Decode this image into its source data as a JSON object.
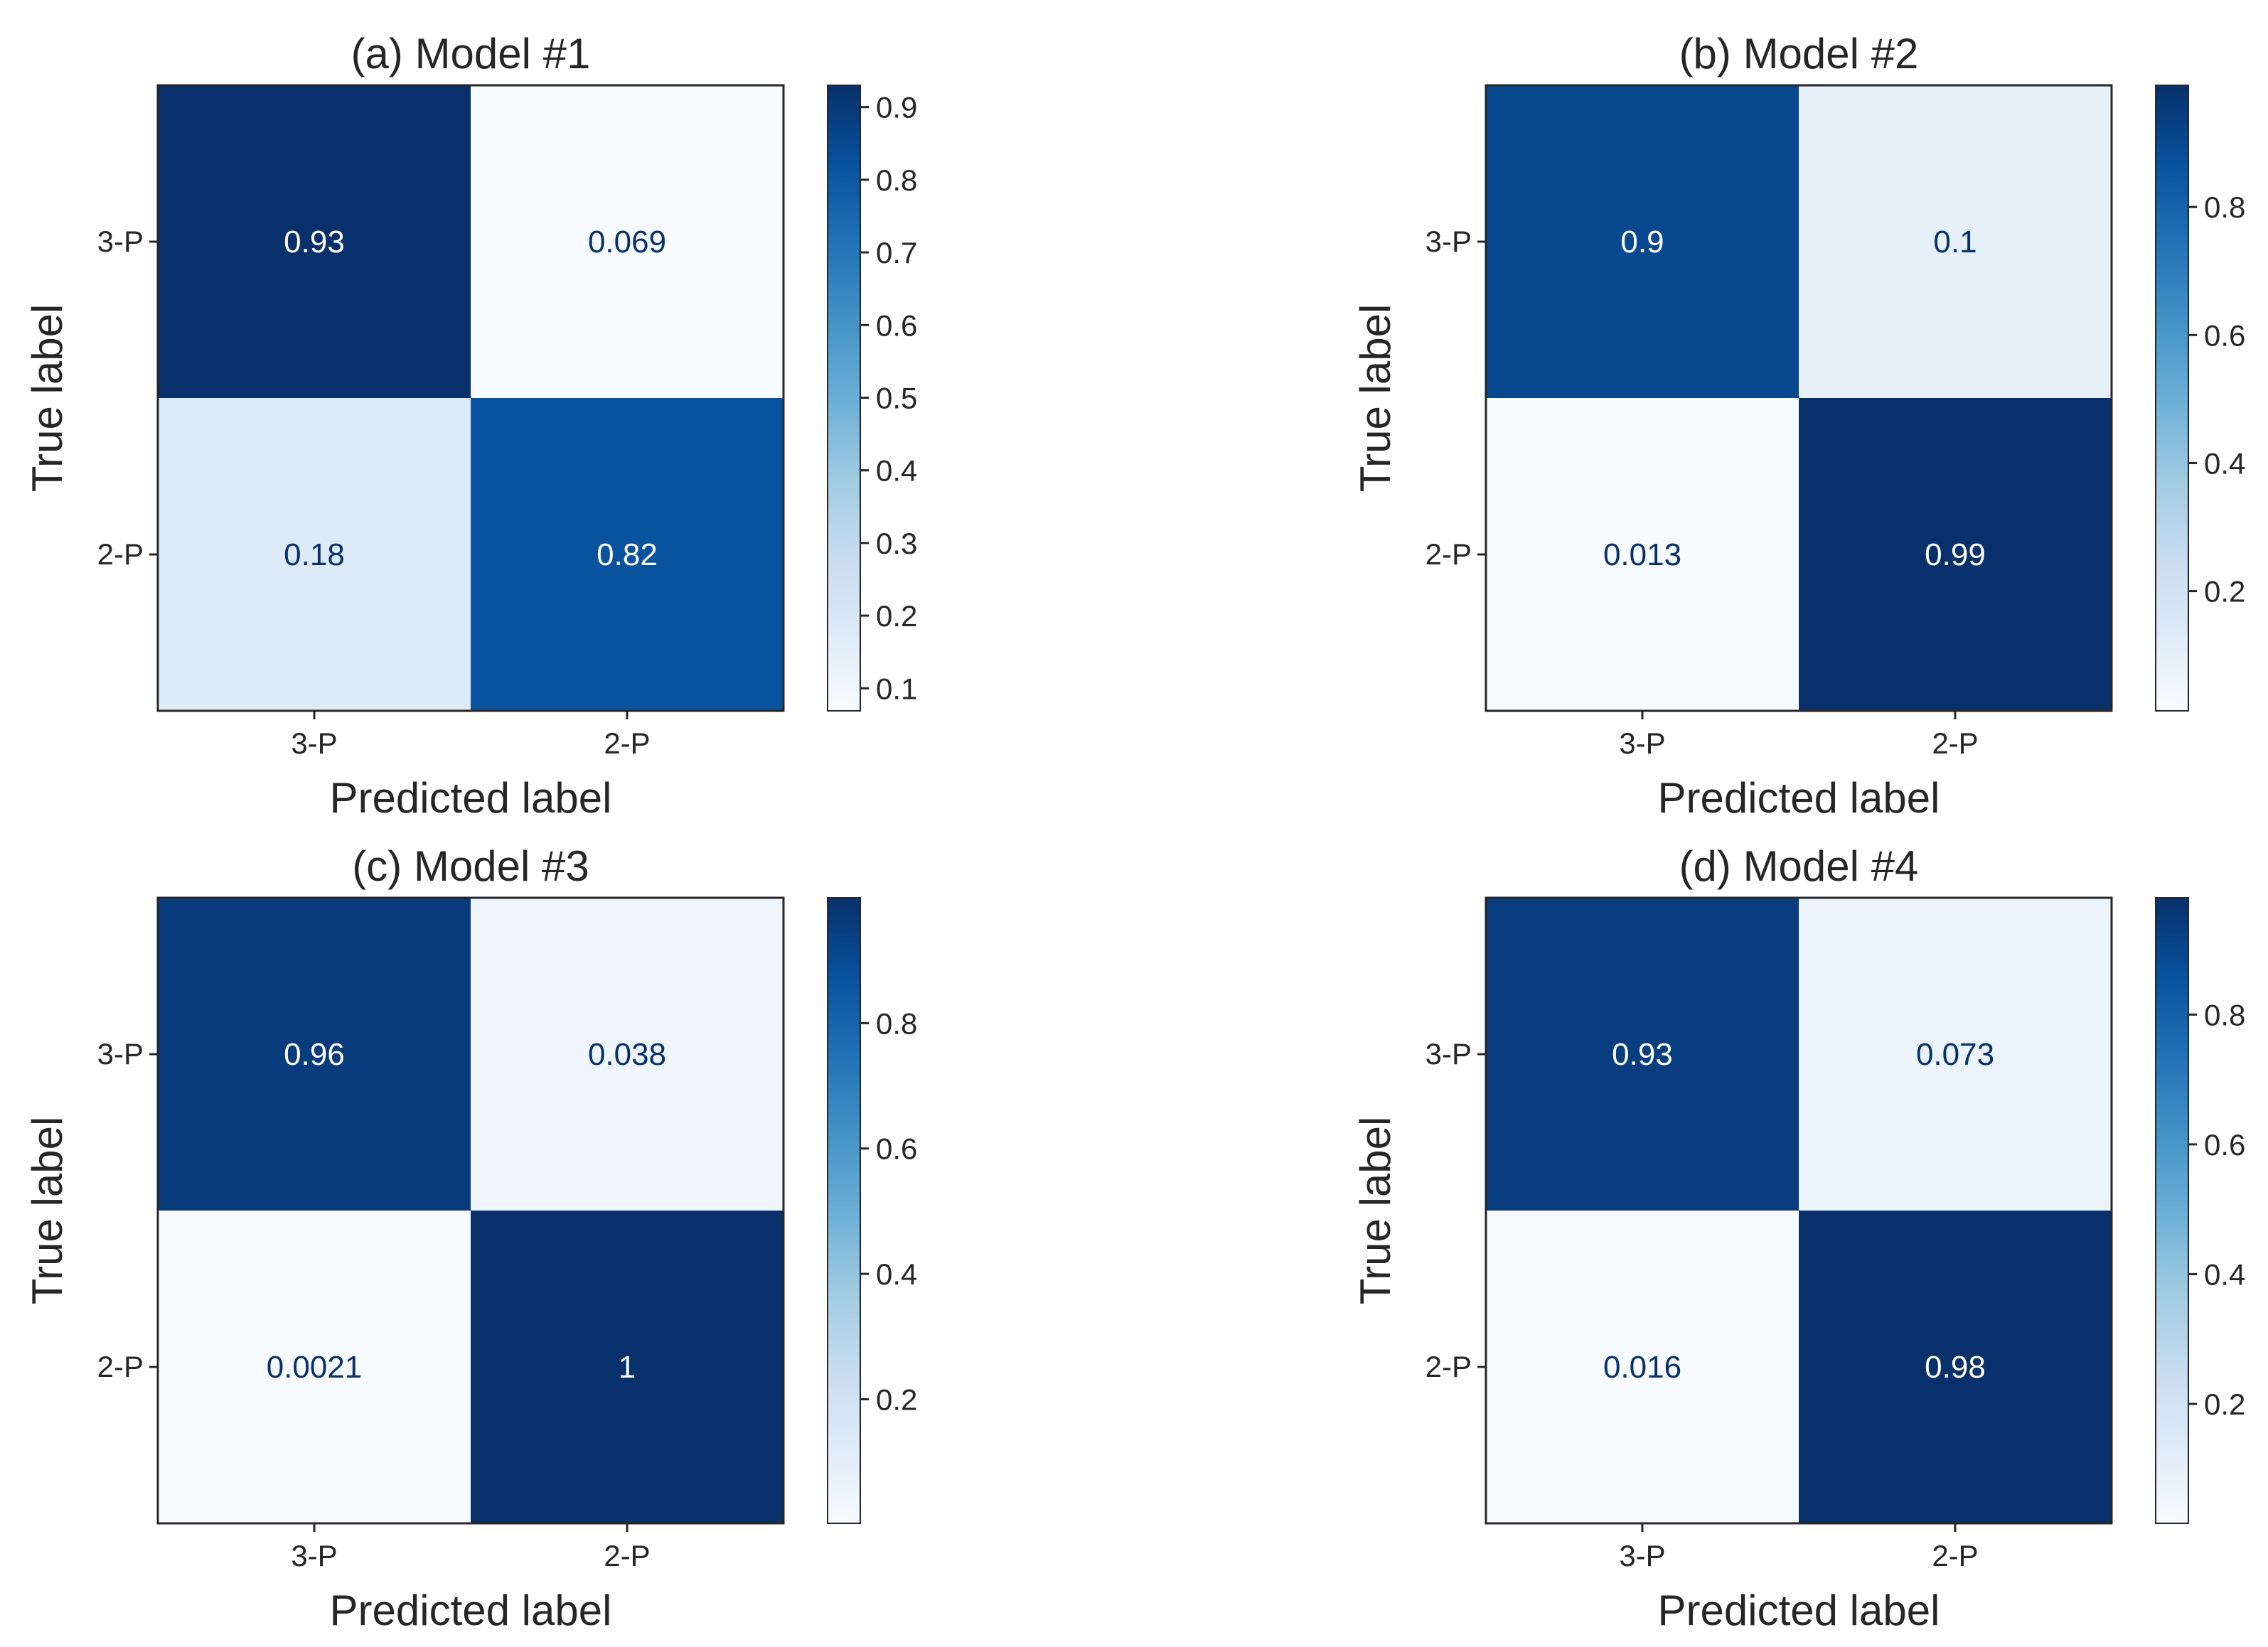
{
  "chart_data": [
    {
      "type": "heatmap",
      "title": "(a) Model #1",
      "xlabel": "Predicted label",
      "ylabel": "True label",
      "x_tick_labels": [
        "3-P",
        "2-P"
      ],
      "y_tick_labels": [
        "3-P",
        "2-P"
      ],
      "matrix": [
        [
          0.93,
          0.069
        ],
        [
          0.18,
          0.82
        ]
      ],
      "cell_labels": [
        [
          "0.93",
          "0.069"
        ],
        [
          "0.18",
          "0.82"
        ]
      ],
      "colorbar": {
        "min": 0.069,
        "max": 0.93,
        "ticks": [
          0.1,
          0.2,
          0.3,
          0.4,
          0.5,
          0.6,
          0.7,
          0.8,
          0.9
        ],
        "tick_labels": [
          "0.1",
          "0.2",
          "0.3",
          "0.4",
          "0.5",
          "0.6",
          "0.7",
          "0.8",
          "0.9"
        ]
      },
      "colormap": "Blues"
    },
    {
      "type": "heatmap",
      "title": "(b) Model #2",
      "xlabel": "Predicted label",
      "ylabel": "True label",
      "x_tick_labels": [
        "3-P",
        "2-P"
      ],
      "y_tick_labels": [
        "3-P",
        "2-P"
      ],
      "matrix": [
        [
          0.9,
          0.1
        ],
        [
          0.013,
          0.99
        ]
      ],
      "cell_labels": [
        [
          "0.9",
          "0.1"
        ],
        [
          "0.013",
          "0.99"
        ]
      ],
      "colorbar": {
        "min": 0.013,
        "max": 0.99,
        "ticks": [
          0.2,
          0.4,
          0.6,
          0.8
        ],
        "tick_labels": [
          "0.2",
          "0.4",
          "0.6",
          "0.8"
        ]
      },
      "colormap": "Blues"
    },
    {
      "type": "heatmap",
      "title": "(c) Model #3",
      "xlabel": "Predicted label",
      "ylabel": "True label",
      "x_tick_labels": [
        "3-P",
        "2-P"
      ],
      "y_tick_labels": [
        "3-P",
        "2-P"
      ],
      "matrix": [
        [
          0.96,
          0.038
        ],
        [
          0.0021,
          1.0
        ]
      ],
      "cell_labels": [
        [
          "0.96",
          "0.038"
        ],
        [
          "0.0021",
          "1"
        ]
      ],
      "colorbar": {
        "min": 0.0021,
        "max": 1.0,
        "ticks": [
          0.2,
          0.4,
          0.6,
          0.8
        ],
        "tick_labels": [
          "0.2",
          "0.4",
          "0.6",
          "0.8"
        ]
      },
      "colormap": "Blues"
    },
    {
      "type": "heatmap",
      "title": "(d) Model #4",
      "xlabel": "Predicted label",
      "ylabel": "True label",
      "x_tick_labels": [
        "3-P",
        "2-P"
      ],
      "y_tick_labels": [
        "3-P",
        "2-P"
      ],
      "matrix": [
        [
          0.93,
          0.073
        ],
        [
          0.016,
          0.98
        ]
      ],
      "cell_labels": [
        [
          "0.93",
          "0.073"
        ],
        [
          "0.016",
          "0.98"
        ]
      ],
      "colorbar": {
        "min": 0.016,
        "max": 0.98,
        "ticks": [
          0.2,
          0.4,
          0.6,
          0.8
        ],
        "tick_labels": [
          "0.2",
          "0.4",
          "0.6",
          "0.8"
        ]
      },
      "colormap": "Blues"
    }
  ],
  "colors": {
    "blues_scale": [
      "#f7fbff",
      "#deebf7",
      "#c6dbef",
      "#9ecae1",
      "#6baed6",
      "#4292c6",
      "#2171b5",
      "#08519c",
      "#08306b"
    ],
    "text_dark": "#08306b",
    "text_light": "#ffffff",
    "spine": "#262626"
  }
}
